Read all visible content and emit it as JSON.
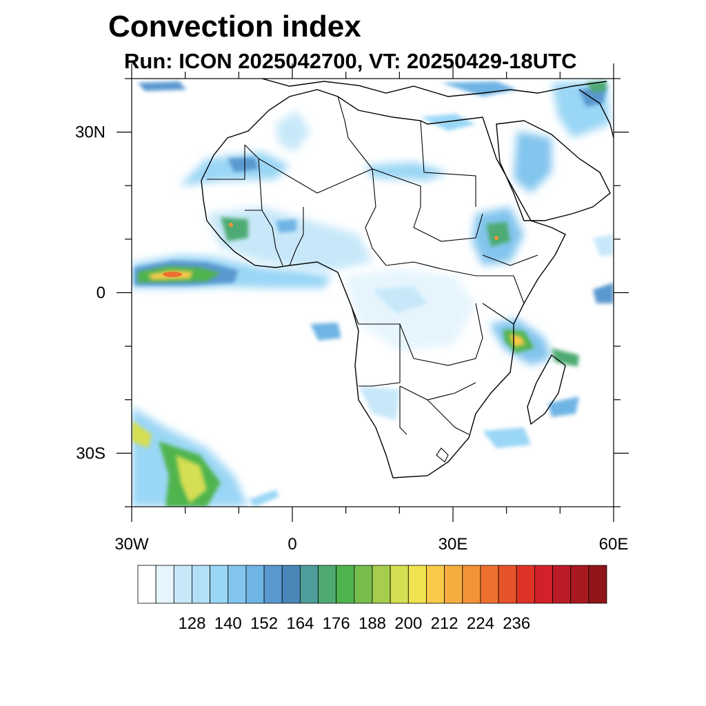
{
  "title": "Convection index",
  "subtitle": "Run: ICON 2025042700,  VT: 20250429-18UTC",
  "map": {
    "lon_range": [
      -30,
      60
    ],
    "lat_range": [
      -40,
      40
    ],
    "x_ticks": [
      {
        "value": -30,
        "label": "30W"
      },
      {
        "value": 0,
        "label": "0"
      },
      {
        "value": 30,
        "label": "30E"
      },
      {
        "value": 60,
        "label": "60E"
      }
    ],
    "y_ticks": [
      {
        "value": 30,
        "label": "30N"
      },
      {
        "value": 0,
        "label": "0"
      },
      {
        "value": -30,
        "label": "30S"
      }
    ]
  },
  "colorbar": {
    "colors": [
      "#ffffff",
      "#e6f5fd",
      "#c8e8f9",
      "#b2e0f7",
      "#9ad6f5",
      "#82c5ee",
      "#6eb4e4",
      "#5a99d0",
      "#4a87b8",
      "#4d9e9a",
      "#4eaa72",
      "#4fb44d",
      "#76bd4c",
      "#a6cd4e",
      "#d6de52",
      "#f1e350",
      "#f9c94a",
      "#f6ad40",
      "#f39237",
      "#ed7030",
      "#e7532a",
      "#df3328",
      "#d22129",
      "#bb1c27",
      "#a8191f",
      "#8f1518"
    ],
    "labels": [
      "128",
      "140",
      "152",
      "164",
      "176",
      "188",
      "200",
      "212",
      "224",
      "236"
    ]
  },
  "regions": [
    {
      "name": "cells-atlantic-equator",
      "level": "high",
      "lon": -25,
      "lat": 1
    },
    {
      "name": "cells-south-atlantic",
      "level": "high",
      "lon": -21,
      "lat": -36
    },
    {
      "name": "cells-tanzania-coast",
      "level": "high",
      "lon": 42,
      "lat": -9
    },
    {
      "name": "cells-ethiopia",
      "level": "medium",
      "lon": 39,
      "lat": 10
    },
    {
      "name": "cells-west-africa",
      "level": "medium",
      "lon": -11,
      "lat": 11
    },
    {
      "name": "cells-north-africa",
      "level": "low",
      "lon": -9,
      "lat": 24
    },
    {
      "name": "cells-arabia",
      "level": "low",
      "lon": 44,
      "lat": 24
    },
    {
      "name": "cells-congo",
      "level": "low",
      "lon": 22,
      "lat": -2
    }
  ]
}
